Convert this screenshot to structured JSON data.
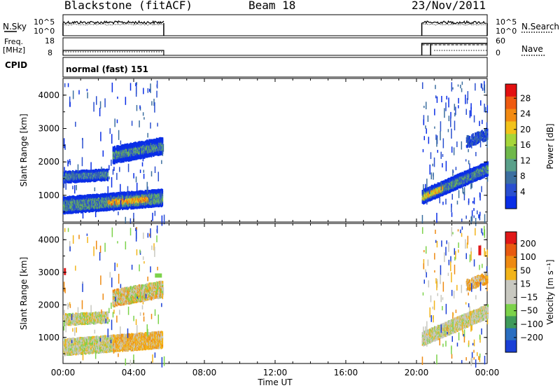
{
  "header": {
    "radar": "Blackstone (fitACF)",
    "beam": "Beam 18",
    "date": "23/Nov/2011"
  },
  "noise_panel": {
    "left_label": "N.Sky",
    "left_ticks": [
      "10^5",
      "10^0"
    ],
    "right_ticks": [
      "10^5",
      "10^0"
    ],
    "right_label": "N.Search"
  },
  "freq_panel": {
    "left_label_1": "Freq.",
    "left_label_2": "[MHz]",
    "left_ticks": [
      "18",
      "8"
    ],
    "right_ticks": [
      "60",
      "0"
    ],
    "right_label": "Nave"
  },
  "cpid_panel": {
    "label": "CPID",
    "mode": "normal (fast) 151"
  },
  "chart_data": [
    {
      "type": "heatmap",
      "name": "power",
      "ylabel": "Slant Range [km]",
      "yticks": [
        "1000",
        "2000",
        "3000",
        "4000"
      ],
      "ylim": [
        200,
        4500
      ],
      "x_ticks": [
        "00:00",
        "04:00",
        "08:00",
        "12:00",
        "16:00",
        "20:00",
        "00:00"
      ],
      "xlim_hours": [
        0,
        24
      ],
      "colorbar": {
        "label": "Power [dB]",
        "ticks": [
          "4",
          "8",
          "12",
          "16",
          "20",
          "24",
          "28"
        ],
        "colors": [
          "#0a2ee6",
          "#2a4fd0",
          "#3c6fa0",
          "#5aa08a",
          "#6fb84a",
          "#a6d63a",
          "#f2c21a",
          "#f28a12",
          "#ee5a10",
          "#e21010"
        ]
      },
      "data_hours": [
        [
          0,
          5.7
        ],
        [
          20.3,
          24
        ]
      ]
    },
    {
      "type": "heatmap",
      "name": "velocity",
      "ylabel": "Slant Range [km]",
      "yticks": [
        "1000",
        "2000",
        "3000",
        "4000"
      ],
      "ylim": [
        200,
        4500
      ],
      "x_ticks": [
        "00:00",
        "04:00",
        "08:00",
        "12:00",
        "16:00",
        "20:00",
        "00:00"
      ],
      "xlabel": "Time UT",
      "colorbar": {
        "label": "Velocity [m s⁻¹]",
        "ticks": [
          "200",
          "100",
          "50",
          "15",
          "−15",
          "−50",
          "−100",
          "−200"
        ],
        "colors": [
          "#1a3fd6",
          "#2a6ec0",
          "#3f9a5a",
          "#7cd24a",
          "#c8c8c0",
          "#c8c8c0",
          "#f2b41a",
          "#ee8a12",
          "#e85a10",
          "#e01818"
        ]
      },
      "data_hours": [
        [
          0,
          5.7
        ],
        [
          20.3,
          24
        ]
      ]
    }
  ]
}
